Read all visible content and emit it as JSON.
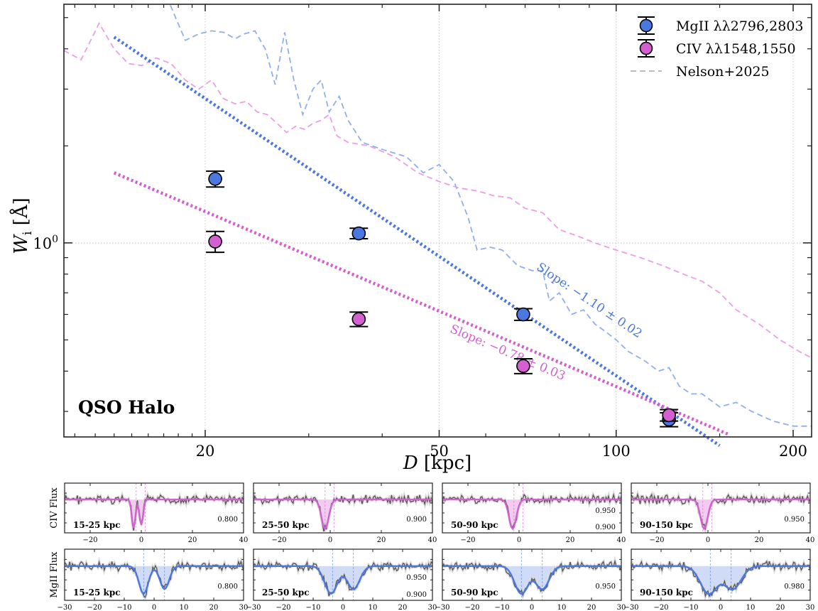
{
  "chart_data": [
    {
      "type": "scatter",
      "panel": "main",
      "xscale": "log",
      "yscale": "log",
      "xlim": [
        11.5,
        215
      ],
      "ylim": [
        0.25,
        5.5
      ],
      "xlabel_italic": "D",
      "xlabel_unit": " [kpc]",
      "ylabel_italic": "W",
      "ylabel_sub": "i",
      "ylabel_unit": " [Å]",
      "xticks": [
        20,
        50,
        100,
        200
      ],
      "xtick_labels": [
        "20",
        "50",
        "100",
        "200"
      ],
      "yticks": [
        1.0
      ],
      "ytick_labels": [
        "10"
      ],
      "ytick_sup": "0",
      "grid": true,
      "legend_position": "top-right",
      "annotation": "QSO Halo",
      "series": [
        {
          "name": "MgII λλ2796,2803",
          "color": "#4a78e0",
          "x": [
            20.8,
            36.5,
            69.5,
            123
          ],
          "y": [
            1.58,
            1.07,
            0.6,
            0.283
          ],
          "yerr": [
            0.09,
            0.04,
            0.025,
            0.014
          ]
        },
        {
          "name": "CIV λλ1548,1550",
          "color": "#d35fd0",
          "x": [
            20.8,
            36.5,
            69.5,
            123
          ],
          "y": [
            1.01,
            0.58,
            0.415,
            0.292
          ],
          "yerr": [
            0.075,
            0.03,
            0.022,
            0.012
          ]
        }
      ],
      "fit_lines": [
        {
          "color": "#4a78e0",
          "x": [
            14,
            150
          ],
          "y": [
            4.35,
            0.235
          ],
          "label": "Slope: −1.10 ± 0.02",
          "label_x": 73,
          "label_y": 0.83
        },
        {
          "color": "#d35fd0",
          "x": [
            14,
            155
          ],
          "y": [
            1.65,
            0.255
          ],
          "label": "Slope: −0.78 ± 0.03",
          "label_x": 52,
          "label_y": 0.53
        }
      ],
      "model_curves": {
        "name": "Nelson+2025",
        "legend_color": "#b9b9c9",
        "series": [
          {
            "color": "#8fb0ec",
            "x": [
              17.2,
              18.5,
              19.5,
              20.5,
              21.5,
              22.5,
              23.3,
              24.3,
              25.3,
              26.3,
              27.3,
              28.3,
              29.3,
              30.5,
              31.5,
              32.5,
              33.8,
              35,
              37,
              40,
              44,
              47,
              50,
              53,
              56,
              58,
              61,
              64,
              68,
              72,
              75,
              77,
              80,
              84,
              88,
              92,
              96,
              100,
              105,
              112,
              118,
              123,
              128,
              134,
              140,
              150,
              160,
              170,
              185,
              200,
              215
            ],
            "y": [
              5.8,
              4.25,
              4.45,
              4.55,
              4.5,
              4.3,
              4.45,
              4.55,
              4.0,
              3.1,
              4.5,
              3.2,
              2.5,
              3.0,
              3.2,
              2.55,
              2.85,
              2.4,
              2.05,
              1.95,
              1.85,
              1.65,
              1.75,
              1.55,
              1.2,
              0.95,
              0.97,
              0.95,
              0.85,
              0.82,
              0.82,
              0.66,
              0.7,
              0.6,
              0.62,
              0.56,
              0.53,
              0.5,
              0.46,
              0.43,
              0.4,
              0.41,
              0.36,
              0.34,
              0.34,
              0.31,
              0.32,
              0.3,
              0.28,
              0.27,
              0.27
            ]
          },
          {
            "color": "#ea9fe6",
            "x": [
              11.5,
              12.3,
              13.2,
              14,
              14.8,
              15.6,
              16.5,
              17.5,
              18.5,
              19.5,
              20.5,
              21.5,
              22.5,
              23.5,
              24.5,
              25.5,
              26.5,
              27.5,
              28.5,
              29.5,
              30.5,
              31.5,
              32.5,
              33.5,
              35,
              38,
              42,
              46,
              50,
              54,
              58,
              62,
              66,
              70,
              75,
              80,
              86,
              92,
              100,
              110,
              120,
              130,
              140,
              150,
              160,
              175,
              190,
              205,
              215
            ],
            "y": [
              3.95,
              3.7,
              4.8,
              4.0,
              3.6,
              3.55,
              3.75,
              3.6,
              3.2,
              3.0,
              3.2,
              2.8,
              2.7,
              2.75,
              2.55,
              2.5,
              2.35,
              2.2,
              2.3,
              2.25,
              2.35,
              2.4,
              2.5,
              2.15,
              2.05,
              2.0,
              1.85,
              1.65,
              1.55,
              1.48,
              1.45,
              1.4,
              1.38,
              1.28,
              1.24,
              1.1,
              1.05,
              1.0,
              0.95,
              0.9,
              0.85,
              0.8,
              0.76,
              0.7,
              0.62,
              0.56,
              0.5,
              0.46,
              0.44
            ]
          }
        ]
      }
    },
    {
      "type": "line",
      "panel": "small-multiples",
      "rows": [
        {
          "ylabel": "CIV Flux",
          "fill_color": "#f3bff0",
          "line_color": "#d35fd0",
          "panels": [
            {
              "label": "15-25 kpc",
              "xlim": [
                -30,
                40
              ],
              "xticks": [
                -20,
                0,
                20,
                40
              ],
              "ytick_labels": [
                "0.800"
              ]
            },
            {
              "label": "25-50 kpc",
              "xlim": [
                -30,
                40
              ],
              "xticks": [
                -20,
                0,
                20,
                40
              ],
              "ytick_labels": [
                "0.900"
              ]
            },
            {
              "label": "50-90 kpc",
              "xlim": [
                -30,
                40
              ],
              "xticks": [
                -20,
                0,
                20,
                40
              ],
              "ytick_labels": [
                "0.950",
                "0.900"
              ]
            },
            {
              "label": "90-150 kpc",
              "xlim": [
                -30,
                40
              ],
              "xticks": [
                -20,
                0,
                20,
                40
              ],
              "ytick_labels": [
                "0.950"
              ]
            }
          ]
        },
        {
          "ylabel": "MgII Flux",
          "fill_color": "#c8d6f6",
          "line_color": "#4a78e0",
          "panels": [
            {
              "label": "15-25 kpc",
              "xlim": [
                -30,
                30
              ],
              "xticks": [
                -30,
                -20,
                -10,
                0,
                10,
                20,
                30
              ],
              "ytick_labels": [
                "0.800"
              ]
            },
            {
              "label": "25-50 kpc",
              "xlim": [
                -30,
                30
              ],
              "xticks": [
                -30,
                -20,
                -10,
                0,
                10,
                20,
                30
              ],
              "ytick_labels": [
                "0.950",
                "0.900"
              ]
            },
            {
              "label": "50-90 kpc",
              "xlim": [
                -30,
                30
              ],
              "xticks": [
                -30,
                -20,
                -10,
                0,
                10,
                20,
                30
              ],
              "ytick_labels": [
                "0.950"
              ]
            },
            {
              "label": "90-150 kpc",
              "xlim": [
                -30,
                30
              ],
              "xticks": [
                -30,
                -20,
                -10,
                0,
                10,
                20,
                30
              ],
              "ytick_labels": [
                "0.980"
              ]
            }
          ]
        }
      ]
    }
  ]
}
